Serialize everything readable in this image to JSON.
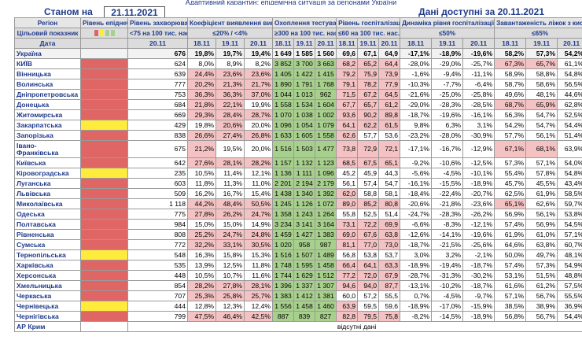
{
  "top_title": "Адаптивний карантин: епідемічна ситуація за регіонами України",
  "header": {
    "state_label": "Станом на",
    "date": "21.11.2021",
    "available_label": "Дані доступні за",
    "available_date": "20.11.2021"
  },
  "columns": {
    "region": "Регіон",
    "epid": "Рівень епіднебезпеки",
    "incidence": "Рівень захворюваності",
    "detection": "Коефіцієнт виявлення випадків інфікування",
    "testing": "Охоплення тестуванням",
    "hosp": "Рівень госпіталізації",
    "dynamics": "Динаміка рівня госпіталізації",
    "oxygen": "Завантаженість ліжок з киснем"
  },
  "target": {
    "label": "Цільовий показник",
    "incidence": "<75 на 100 тис. нас.",
    "detection": "≤20% / <4%",
    "testing": "≥300 на 100 тис. нас.",
    "hosp": "≤60 на 100 тис. нас.",
    "dynamics": "≤50%",
    "oxygen": "≤65%",
    "light_colors": [
      "#e06666",
      "#ffeb3b",
      "#a8d08d",
      "#a8d08d"
    ]
  },
  "date_row": {
    "label": "Дата",
    "incidence": "20.11",
    "dates3": [
      "18.11",
      "19.11",
      "20.11"
    ]
  },
  "ukraine": {
    "region": "Україна",
    "incidence": "676",
    "detection": [
      "19,8%",
      "19,7%",
      "19,4%"
    ],
    "testing": [
      "1 649",
      "1 585",
      "1 560"
    ],
    "hosp": [
      "69,6",
      "67,1",
      "64,9"
    ],
    "dynamics": [
      "-17,1%",
      "-18,9%",
      "-19,6%"
    ],
    "oxygen": [
      "58,2%",
      "57,3%",
      "54,2%"
    ]
  },
  "rows": [
    {
      "region": "КИЇВ",
      "level": "red",
      "incidence": "624",
      "detection": [
        "8,0%",
        "8,9%",
        "8,2%"
      ],
      "testing": [
        "3 852",
        "3 700",
        "3 663"
      ],
      "hosp": [
        "68,2",
        "65,2",
        "64,4"
      ],
      "dynamics": [
        "-28,0%",
        "-29,0%",
        "-25,7%"
      ],
      "oxygen": [
        "67,3%",
        "65,7%",
        "61,1%"
      ],
      "ox_hi": [
        true,
        true,
        false
      ]
    },
    {
      "region": "Вінницька",
      "level": "red",
      "incidence": "639",
      "detection": [
        "24,4%",
        "23,6%",
        "23,6%"
      ],
      "testing": [
        "1 405",
        "1 422",
        "1 415"
      ],
      "hosp": [
        "79,2",
        "75,9",
        "73,9"
      ],
      "dynamics": [
        "-1,6%",
        "-9,4%",
        "-11,1%"
      ],
      "oxygen": [
        "58,9%",
        "58,8%",
        "54,8%"
      ],
      "ox_hi": [
        false,
        false,
        false
      ]
    },
    {
      "region": "Волинська",
      "level": "red",
      "incidence": "777",
      "detection": [
        "20,2%",
        "21,3%",
        "21,7%"
      ],
      "testing": [
        "1 890",
        "1 791",
        "1 768"
      ],
      "hosp": [
        "79,1",
        "78,2",
        "77,9"
      ],
      "dynamics": [
        "-10,3%",
        "-7,7%",
        "-6,4%"
      ],
      "oxygen": [
        "58,7%",
        "58,6%",
        "56,5%"
      ],
      "ox_hi": [
        false,
        false,
        false
      ]
    },
    {
      "region": "Дніпропетровська",
      "level": "red",
      "incidence": "753",
      "detection": [
        "36,3%",
        "36,3%",
        "37,0%"
      ],
      "testing": [
        "1 044",
        "1 013",
        "962"
      ],
      "hosp": [
        "71,5",
        "67,2",
        "64,5"
      ],
      "dynamics": [
        "-21,6%",
        "-25,0%",
        "-25,8%"
      ],
      "oxygen": [
        "49,6%",
        "48,1%",
        "44,6%"
      ],
      "ox_hi": [
        false,
        false,
        false
      ]
    },
    {
      "region": "Донецька",
      "level": "red",
      "incidence": "684",
      "detection": [
        "21,8%",
        "22,1%",
        "19,9%"
      ],
      "testing": [
        "1 558",
        "1 534",
        "1 604"
      ],
      "hosp": [
        "67,7",
        "65,7",
        "61,2"
      ],
      "dynamics": [
        "-29,0%",
        "-28,3%",
        "-28,5%"
      ],
      "oxygen": [
        "68,7%",
        "65,9%",
        "62,8%"
      ],
      "ox_hi": [
        true,
        true,
        false
      ]
    },
    {
      "region": "Житомирська",
      "level": "red",
      "incidence": "669",
      "detection": [
        "29,3%",
        "28,4%",
        "28,7%"
      ],
      "testing": [
        "1 070",
        "1 038",
        "1 002"
      ],
      "hosp": [
        "93,6",
        "90,2",
        "89,8"
      ],
      "dynamics": [
        "-18,7%",
        "-19,6%",
        "-16,1%"
      ],
      "oxygen": [
        "56,3%",
        "54,7%",
        "52,5%"
      ],
      "ox_hi": [
        false,
        false,
        false
      ]
    },
    {
      "region": "Закарпатська",
      "level": "yel",
      "incidence": "429",
      "detection": [
        "19,8%",
        "20,6%",
        "20,0%"
      ],
      "testing": [
        "1 096",
        "1 054",
        "1 079"
      ],
      "hosp": [
        "64,1",
        "62,2",
        "61,5"
      ],
      "dynamics": [
        "9,8%",
        "6,3%",
        "3,1%"
      ],
      "oxygen": [
        "54,2%",
        "54,7%",
        "54,4%"
      ],
      "ox_hi": [
        false,
        false,
        false
      ]
    },
    {
      "region": "Запорізька",
      "level": "red",
      "incidence": "838",
      "detection": [
        "26,6%",
        "27,4%",
        "26,8%"
      ],
      "testing": [
        "1 633",
        "1 605",
        "1 558"
      ],
      "hosp": [
        "62,6",
        "57,7",
        "53,6"
      ],
      "dynamics": [
        "-23,2%",
        "-28,0%",
        "-30,9%"
      ],
      "oxygen": [
        "57,7%",
        "56,1%",
        "51,4%"
      ],
      "ox_hi": [
        false,
        false,
        false
      ]
    },
    {
      "region": "Івано-Франківська",
      "level": "red",
      "incidence": "675",
      "detection": [
        "21,2%",
        "19,5%",
        "20,0%"
      ],
      "testing": [
        "1 516",
        "1 503",
        "1 477"
      ],
      "hosp": [
        "73,8",
        "72,9",
        "72,1"
      ],
      "dynamics": [
        "-17,1%",
        "-16,7%",
        "-12,9%"
      ],
      "oxygen": [
        "67,1%",
        "68,1%",
        "63,9%"
      ],
      "ox_hi": [
        true,
        true,
        false
      ],
      "tall": true
    },
    {
      "region": "Київська",
      "level": "red",
      "incidence": "642",
      "detection": [
        "27,6%",
        "28,1%",
        "28,2%"
      ],
      "testing": [
        "1 157",
        "1 132",
        "1 123"
      ],
      "hosp": [
        "68,5",
        "67,5",
        "65,1"
      ],
      "dynamics": [
        "-9,2%",
        "-10,6%",
        "-12,5%"
      ],
      "oxygen": [
        "57,3%",
        "57,1%",
        "54,0%"
      ],
      "ox_hi": [
        false,
        false,
        false
      ]
    },
    {
      "region": "Кіровоградська",
      "level": "yel",
      "incidence": "235",
      "detection": [
        "10,5%",
        "11,4%",
        "12,1%"
      ],
      "testing": [
        "1 136",
        "1 111",
        "1 096"
      ],
      "hosp": [
        "45,2",
        "45,9",
        "44,3"
      ],
      "dynamics": [
        "-5,6%",
        "-4,5%",
        "-10,1%"
      ],
      "oxygen": [
        "55,4%",
        "57,8%",
        "54,8%"
      ],
      "ox_hi": [
        false,
        false,
        false
      ]
    },
    {
      "region": "Луганська",
      "level": "red",
      "incidence": "603",
      "detection": [
        "11,8%",
        "11,3%",
        "11,0%"
      ],
      "testing": [
        "2 201",
        "2 194",
        "2 179"
      ],
      "hosp": [
        "56,1",
        "57,4",
        "54,7"
      ],
      "dynamics": [
        "-16,1%",
        "-15,5%",
        "-18,9%"
      ],
      "oxygen": [
        "45,7%",
        "45,5%",
        "43,4%"
      ],
      "ox_hi": [
        false,
        false,
        false
      ]
    },
    {
      "region": "Львівська",
      "level": "red",
      "incidence": "509",
      "detection": [
        "16,2%",
        "16,7%",
        "15,4%"
      ],
      "testing": [
        "1 438",
        "1 340",
        "1 392"
      ],
      "hosp": [
        "62,0",
        "58,8",
        "58,1"
      ],
      "dynamics": [
        "-18,4%",
        "-22,4%",
        "-20,7%"
      ],
      "oxygen": [
        "62,5%",
        "61,9%",
        "58,5%"
      ],
      "ox_hi": [
        false,
        false,
        false
      ]
    },
    {
      "region": "Миколаївська",
      "level": "red",
      "incidence": "1 118",
      "detection": [
        "44,2%",
        "48,4%",
        "50,5%"
      ],
      "testing": [
        "1 245",
        "1 126",
        "1 072"
      ],
      "hosp": [
        "89,0",
        "85,2",
        "80,8"
      ],
      "dynamics": [
        "-20,6%",
        "-21,8%",
        "-23,6%"
      ],
      "oxygen": [
        "65,1%",
        "62,6%",
        "59,7%"
      ],
      "ox_hi": [
        true,
        false,
        false
      ]
    },
    {
      "region": "Одеська",
      "level": "red",
      "incidence": "775",
      "detection": [
        "27,8%",
        "26,2%",
        "24,7%"
      ],
      "testing": [
        "1 358",
        "1 243",
        "1 264"
      ],
      "hosp": [
        "55,8",
        "52,5",
        "51,4"
      ],
      "dynamics": [
        "-24,7%",
        "-28,3%",
        "-26,2%"
      ],
      "oxygen": [
        "56,9%",
        "56,1%",
        "53,8%"
      ],
      "ox_hi": [
        false,
        false,
        false
      ]
    },
    {
      "region": "Полтавська",
      "level": "red",
      "incidence": "984",
      "detection": [
        "15,0%",
        "15,0%",
        "14,9%"
      ],
      "testing": [
        "3 234",
        "3 141",
        "3 164"
      ],
      "hosp": [
        "73,1",
        "72,2",
        "69,9"
      ],
      "dynamics": [
        "-6,6%",
        "-8,3%",
        "-12,1%"
      ],
      "oxygen": [
        "57,4%",
        "56,9%",
        "54,5%"
      ],
      "ox_hi": [
        false,
        false,
        false
      ]
    },
    {
      "region": "Рівненська",
      "level": "red",
      "incidence": "808",
      "detection": [
        "25,2%",
        "24,7%",
        "24,8%"
      ],
      "testing": [
        "1 459",
        "1 427",
        "1 383"
      ],
      "hosp": [
        "69,0",
        "67,6",
        "63,8"
      ],
      "dynamics": [
        "-12,6%",
        "-14,1%",
        "-19,6%"
      ],
      "oxygen": [
        "61,9%",
        "61,0%",
        "57,1%"
      ],
      "ox_hi": [
        false,
        false,
        false
      ]
    },
    {
      "region": "Сумська",
      "level": "red",
      "incidence": "772",
      "detection": [
        "32,2%",
        "33,1%",
        "30,5%"
      ],
      "testing": [
        "1 020",
        "958",
        "987"
      ],
      "hosp": [
        "81,1",
        "77,0",
        "73,0"
      ],
      "dynamics": [
        "-18,7%",
        "-21,5%",
        "-25,6%"
      ],
      "oxygen": [
        "64,6%",
        "63,8%",
        "60,7%"
      ],
      "ox_hi": [
        false,
        false,
        false
      ]
    },
    {
      "region": "Тернопільська",
      "level": "yel",
      "incidence": "548",
      "detection": [
        "16,3%",
        "15,8%",
        "15,3%"
      ],
      "testing": [
        "1 516",
        "1 507",
        "1 489"
      ],
      "hosp": [
        "56,8",
        "53,8",
        "53,7"
      ],
      "dynamics": [
        "3,0%",
        "3,2%",
        "-2,1%"
      ],
      "oxygen": [
        "50,0%",
        "49,7%",
        "48,1%"
      ],
      "ox_hi": [
        false,
        false,
        false
      ]
    },
    {
      "region": "Харківська",
      "level": "red",
      "incidence": "535",
      "detection": [
        "13,9%",
        "12,5%",
        "11,8%"
      ],
      "testing": [
        "1 748",
        "1 595",
        "1 458"
      ],
      "hosp": [
        "66,4",
        "64,1",
        "63,3"
      ],
      "dynamics": [
        "-18,9%",
        "-19,4%",
        "-18,7%"
      ],
      "oxygen": [
        "57,4%",
        "57,3%",
        "54,9%"
      ],
      "ox_hi": [
        false,
        false,
        false
      ]
    },
    {
      "region": "Херсонська",
      "level": "red",
      "incidence": "448",
      "detection": [
        "10,5%",
        "10,7%",
        "11,6%"
      ],
      "testing": [
        "1 744",
        "1 629",
        "1 512"
      ],
      "hosp": [
        "77,2",
        "72,0",
        "67,9"
      ],
      "dynamics": [
        "-28,7%",
        "-31,3%",
        "-30,2%"
      ],
      "oxygen": [
        "53,1%",
        "51,5%",
        "48,8%"
      ],
      "ox_hi": [
        false,
        false,
        false
      ]
    },
    {
      "region": "Хмельницька",
      "level": "red",
      "incidence": "854",
      "detection": [
        "28,2%",
        "27,8%",
        "28,1%"
      ],
      "testing": [
        "1 396",
        "1 337",
        "1 307"
      ],
      "hosp": [
        "94,6",
        "94,0",
        "87,7"
      ],
      "dynamics": [
        "-13,1%",
        "-10,2%",
        "-18,7%"
      ],
      "oxygen": [
        "61,6%",
        "61,2%",
        "57,5%"
      ],
      "ox_hi": [
        false,
        false,
        false
      ]
    },
    {
      "region": "Черкаська",
      "level": "red",
      "incidence": "707",
      "detection": [
        "25,3%",
        "25,8%",
        "25,7%"
      ],
      "testing": [
        "1 383",
        "1 412",
        "1 381"
      ],
      "hosp": [
        "60,0",
        "57,2",
        "55,5"
      ],
      "dynamics": [
        "0,7%",
        "-4,5%",
        "-9,7%"
      ],
      "oxygen": [
        "57,1%",
        "56,7%",
        "55,5%"
      ],
      "ox_hi": [
        false,
        false,
        false
      ]
    },
    {
      "region": "Чернівецька",
      "level": "yel",
      "incidence": "444",
      "detection": [
        "12,8%",
        "12,3%",
        "12,4%"
      ],
      "testing": [
        "1 556",
        "1 458",
        "1 460"
      ],
      "hosp": [
        "63,9",
        "59,5",
        "59,6"
      ],
      "dynamics": [
        "-18,9%",
        "-17,0%",
        "-15,9%"
      ],
      "oxygen": [
        "38,5%",
        "38,9%",
        "36,9%"
      ],
      "ox_hi": [
        false,
        false,
        false
      ]
    },
    {
      "region": "Чернігівська",
      "level": "red",
      "incidence": "799",
      "detection": [
        "47,5%",
        "46,4%",
        "42,5%"
      ],
      "testing": [
        "887",
        "839",
        "827"
      ],
      "hosp": [
        "82,8",
        "79,5",
        "75,8"
      ],
      "dynamics": [
        "-8,2%",
        "-14,5%",
        "-18,9%"
      ],
      "oxygen": [
        "56,8%",
        "56,7%",
        "54,4%"
      ],
      "ox_hi": [
        false,
        false,
        false
      ]
    }
  ],
  "crimea": {
    "region": "АР Крим",
    "note": "відсутні дані"
  },
  "colors": {
    "red": "#e06666",
    "yellow": "#ffeb3b",
    "green": "#a8d08d",
    "pink": "#f4c2c2"
  }
}
